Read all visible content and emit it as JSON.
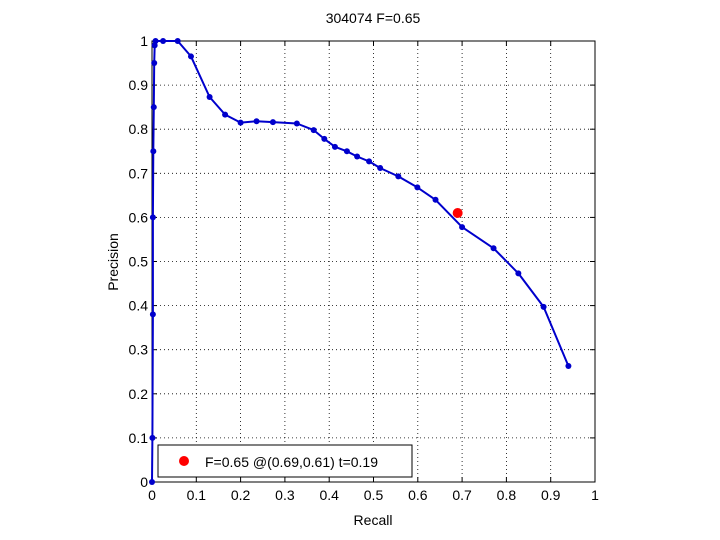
{
  "chart_data": {
    "type": "line",
    "title": "304074 F=0.65",
    "xlabel": "Recall",
    "ylabel": "Precision",
    "xlim": [
      0,
      1
    ],
    "ylim": [
      0,
      1
    ],
    "xticks": [
      "0",
      "0.1",
      "0.2",
      "0.3",
      "0.4",
      "0.5",
      "0.6",
      "0.7",
      "0.8",
      "0.9",
      "1"
    ],
    "yticks": [
      "0",
      "0.1",
      "0.2",
      "0.3",
      "0.4",
      "0.5",
      "0.6",
      "0.7",
      "0.8",
      "0.9",
      "1"
    ],
    "grid": true,
    "legend_position": "bottom-left",
    "series": [
      {
        "color": "#0000cc",
        "x": [
          0.0,
          0.001,
          0.002,
          0.002,
          0.003,
          0.004,
          0.005,
          0.006,
          0.008,
          0.025,
          0.058,
          0.088,
          0.13,
          0.165,
          0.2,
          0.236,
          0.273,
          0.327,
          0.365,
          0.389,
          0.413,
          0.44,
          0.463,
          0.49,
          0.515,
          0.556,
          0.599,
          0.64,
          0.7,
          0.771,
          0.827,
          0.884,
          0.94
        ],
        "y": [
          0.0,
          0.1,
          0.38,
          0.6,
          0.75,
          0.85,
          0.95,
          0.99,
          1.0,
          1.0,
          1.0,
          0.965,
          0.873,
          0.833,
          0.815,
          0.818,
          0.816,
          0.813,
          0.798,
          0.778,
          0.76,
          0.75,
          0.738,
          0.727,
          0.712,
          0.693,
          0.668,
          0.64,
          0.578,
          0.53,
          0.473,
          0.397,
          0.263
        ]
      }
    ],
    "best_point": {
      "x": 0.69,
      "y": 0.61,
      "color": "#ff0000"
    },
    "legend_label": "F=0.65 @(0.69,0.61) t=0.19"
  }
}
